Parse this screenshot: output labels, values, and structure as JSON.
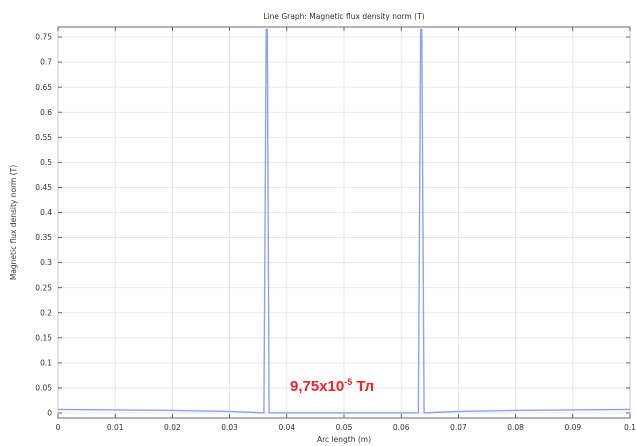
{
  "chart_data": {
    "type": "line",
    "title": "Line Graph: Magnetic flux density norm (T)",
    "xlabel": "Arc length (m)",
    "ylabel": "Magnetic flux density norm (T)",
    "xlim": [
      0,
      0.1
    ],
    "ylim": [
      -0.01,
      0.77
    ],
    "xticks": [
      0,
      0.01,
      0.02,
      0.03,
      0.04,
      0.05,
      0.06,
      0.07,
      0.08,
      0.09,
      0.1
    ],
    "xtick_labels": [
      "0",
      "0.01",
      "0.02",
      "0.03",
      "0.04",
      "0.05",
      "0.06",
      "0.07",
      "0.08",
      "0.09",
      "0.1"
    ],
    "yticks": [
      0,
      0.05,
      0.1,
      0.15,
      0.2,
      0.25,
      0.3,
      0.35,
      0.4,
      0.45,
      0.5,
      0.55,
      0.6,
      0.65,
      0.7,
      0.75
    ],
    "ytick_labels": [
      "0",
      "0.05",
      "0.1",
      "0.15",
      "0.2",
      "0.25",
      "0.3",
      "0.35",
      "0.4",
      "0.45",
      "0.5",
      "0.55",
      "0.6",
      "0.65",
      "0.7",
      "0.75"
    ],
    "grid": true,
    "line_color": "#8fa2ee",
    "series": [
      {
        "x": [
          0,
          0.01,
          0.02,
          0.03,
          0.0345,
          0.036,
          0.0364,
          0.0366,
          0.0369,
          0.04,
          0.05,
          0.06,
          0.063,
          0.0634,
          0.0636,
          0.064,
          0.0655,
          0.07,
          0.08,
          0.09,
          0.1
        ],
        "y": [
          0.007,
          0.006,
          0.005,
          0.003,
          0.001,
          0.0001,
          0.765,
          0.765,
          0.0001,
          0.0001,
          0.0001,
          0.0001,
          0.0001,
          0.765,
          0.765,
          0.0001,
          0.001,
          0.003,
          0.005,
          0.006,
          0.007
        ]
      }
    ],
    "annotation": {
      "text_main": "9,75x10",
      "text_sup": "-5",
      "text_unit": " Тл",
      "color": "#e8262b"
    }
  }
}
